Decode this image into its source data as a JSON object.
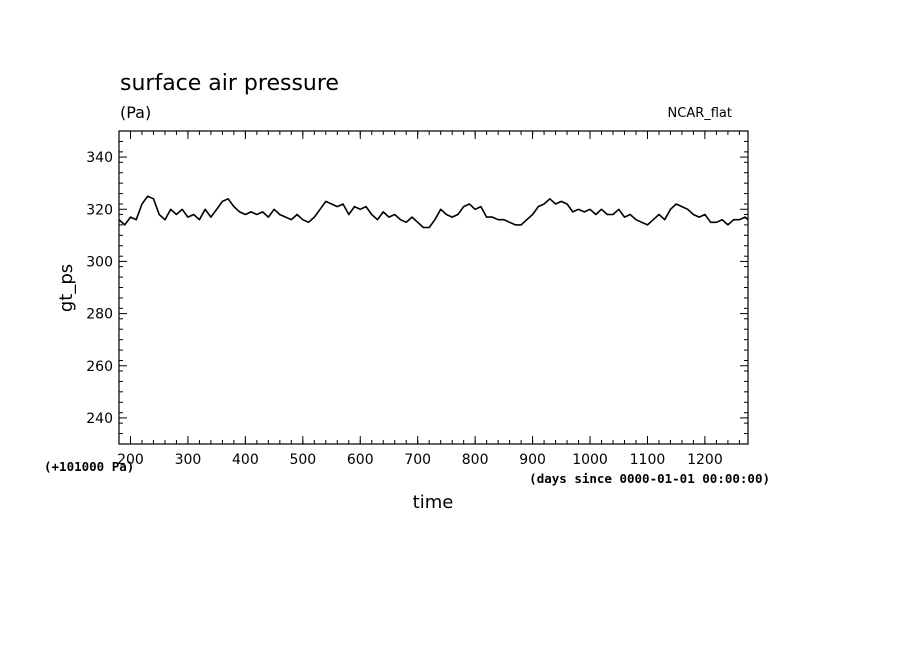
{
  "chart_data": {
    "type": "line",
    "title": "surface air pressure",
    "subtitle": "(Pa)",
    "tag": "NCAR_flat",
    "xlabel": "time",
    "ylabel": "gt_ps",
    "x_unit_note": "(days since 0000-01-01 00:00:00)",
    "y_offset_note": "(+101000 Pa)",
    "xlim": [
      180,
      1275
    ],
    "ylim": [
      230,
      350
    ],
    "x_ticks": [
      "200",
      "300",
      "400",
      "500",
      "600",
      "700",
      "800",
      "900",
      "1000",
      "1100",
      "1200"
    ],
    "y_ticks": [
      "240",
      "260",
      "280",
      "300",
      "320",
      "340"
    ],
    "grid": false,
    "series": [
      {
        "values": [
          [
            180,
            316
          ],
          [
            190,
            314
          ],
          [
            200,
            317
          ],
          [
            210,
            316
          ],
          [
            220,
            322
          ],
          [
            230,
            325
          ],
          [
            240,
            324
          ],
          [
            250,
            318
          ],
          [
            260,
            316
          ],
          [
            270,
            320
          ],
          [
            280,
            318
          ],
          [
            290,
            320
          ],
          [
            300,
            317
          ],
          [
            310,
            318
          ],
          [
            320,
            316
          ],
          [
            330,
            320
          ],
          [
            340,
            317
          ],
          [
            350,
            320
          ],
          [
            360,
            323
          ],
          [
            370,
            324
          ],
          [
            380,
            321
          ],
          [
            390,
            319
          ],
          [
            400,
            318
          ],
          [
            410,
            319
          ],
          [
            420,
            318
          ],
          [
            430,
            319
          ],
          [
            440,
            317
          ],
          [
            450,
            320
          ],
          [
            460,
            318
          ],
          [
            470,
            317
          ],
          [
            480,
            316
          ],
          [
            490,
            318
          ],
          [
            500,
            316
          ],
          [
            510,
            315
          ],
          [
            520,
            317
          ],
          [
            530,
            320
          ],
          [
            540,
            323
          ],
          [
            550,
            322
          ],
          [
            560,
            321
          ],
          [
            570,
            322
          ],
          [
            580,
            318
          ],
          [
            590,
            321
          ],
          [
            600,
            320
          ],
          [
            610,
            321
          ],
          [
            620,
            318
          ],
          [
            630,
            316
          ],
          [
            640,
            319
          ],
          [
            650,
            317
          ],
          [
            660,
            318
          ],
          [
            670,
            316
          ],
          [
            680,
            315
          ],
          [
            690,
            317
          ],
          [
            700,
            315
          ],
          [
            710,
            313
          ],
          [
            720,
            313
          ],
          [
            730,
            316
          ],
          [
            740,
            320
          ],
          [
            750,
            318
          ],
          [
            760,
            317
          ],
          [
            770,
            318
          ],
          [
            780,
            321
          ],
          [
            790,
            322
          ],
          [
            800,
            320
          ],
          [
            810,
            321
          ],
          [
            820,
            317
          ],
          [
            830,
            317
          ],
          [
            840,
            316
          ],
          [
            850,
            316
          ],
          [
            860,
            315
          ],
          [
            870,
            314
          ],
          [
            880,
            314
          ],
          [
            890,
            316
          ],
          [
            900,
            318
          ],
          [
            910,
            321
          ],
          [
            920,
            322
          ],
          [
            930,
            324
          ],
          [
            940,
            322
          ],
          [
            950,
            323
          ],
          [
            960,
            322
          ],
          [
            970,
            319
          ],
          [
            980,
            320
          ],
          [
            990,
            319
          ],
          [
            1000,
            320
          ],
          [
            1010,
            318
          ],
          [
            1020,
            320
          ],
          [
            1030,
            318
          ],
          [
            1040,
            318
          ],
          [
            1050,
            320
          ],
          [
            1060,
            317
          ],
          [
            1070,
            318
          ],
          [
            1080,
            316
          ],
          [
            1090,
            315
          ],
          [
            1100,
            314
          ],
          [
            1110,
            316
          ],
          [
            1120,
            318
          ],
          [
            1130,
            316
          ],
          [
            1140,
            320
          ],
          [
            1150,
            322
          ],
          [
            1160,
            321
          ],
          [
            1170,
            320
          ],
          [
            1180,
            318
          ],
          [
            1190,
            317
          ],
          [
            1200,
            318
          ],
          [
            1210,
            315
          ],
          [
            1220,
            315
          ],
          [
            1230,
            316
          ],
          [
            1240,
            314
          ],
          [
            1250,
            316
          ],
          [
            1260,
            316
          ],
          [
            1270,
            317
          ],
          [
            1275,
            316
          ]
        ]
      }
    ]
  }
}
